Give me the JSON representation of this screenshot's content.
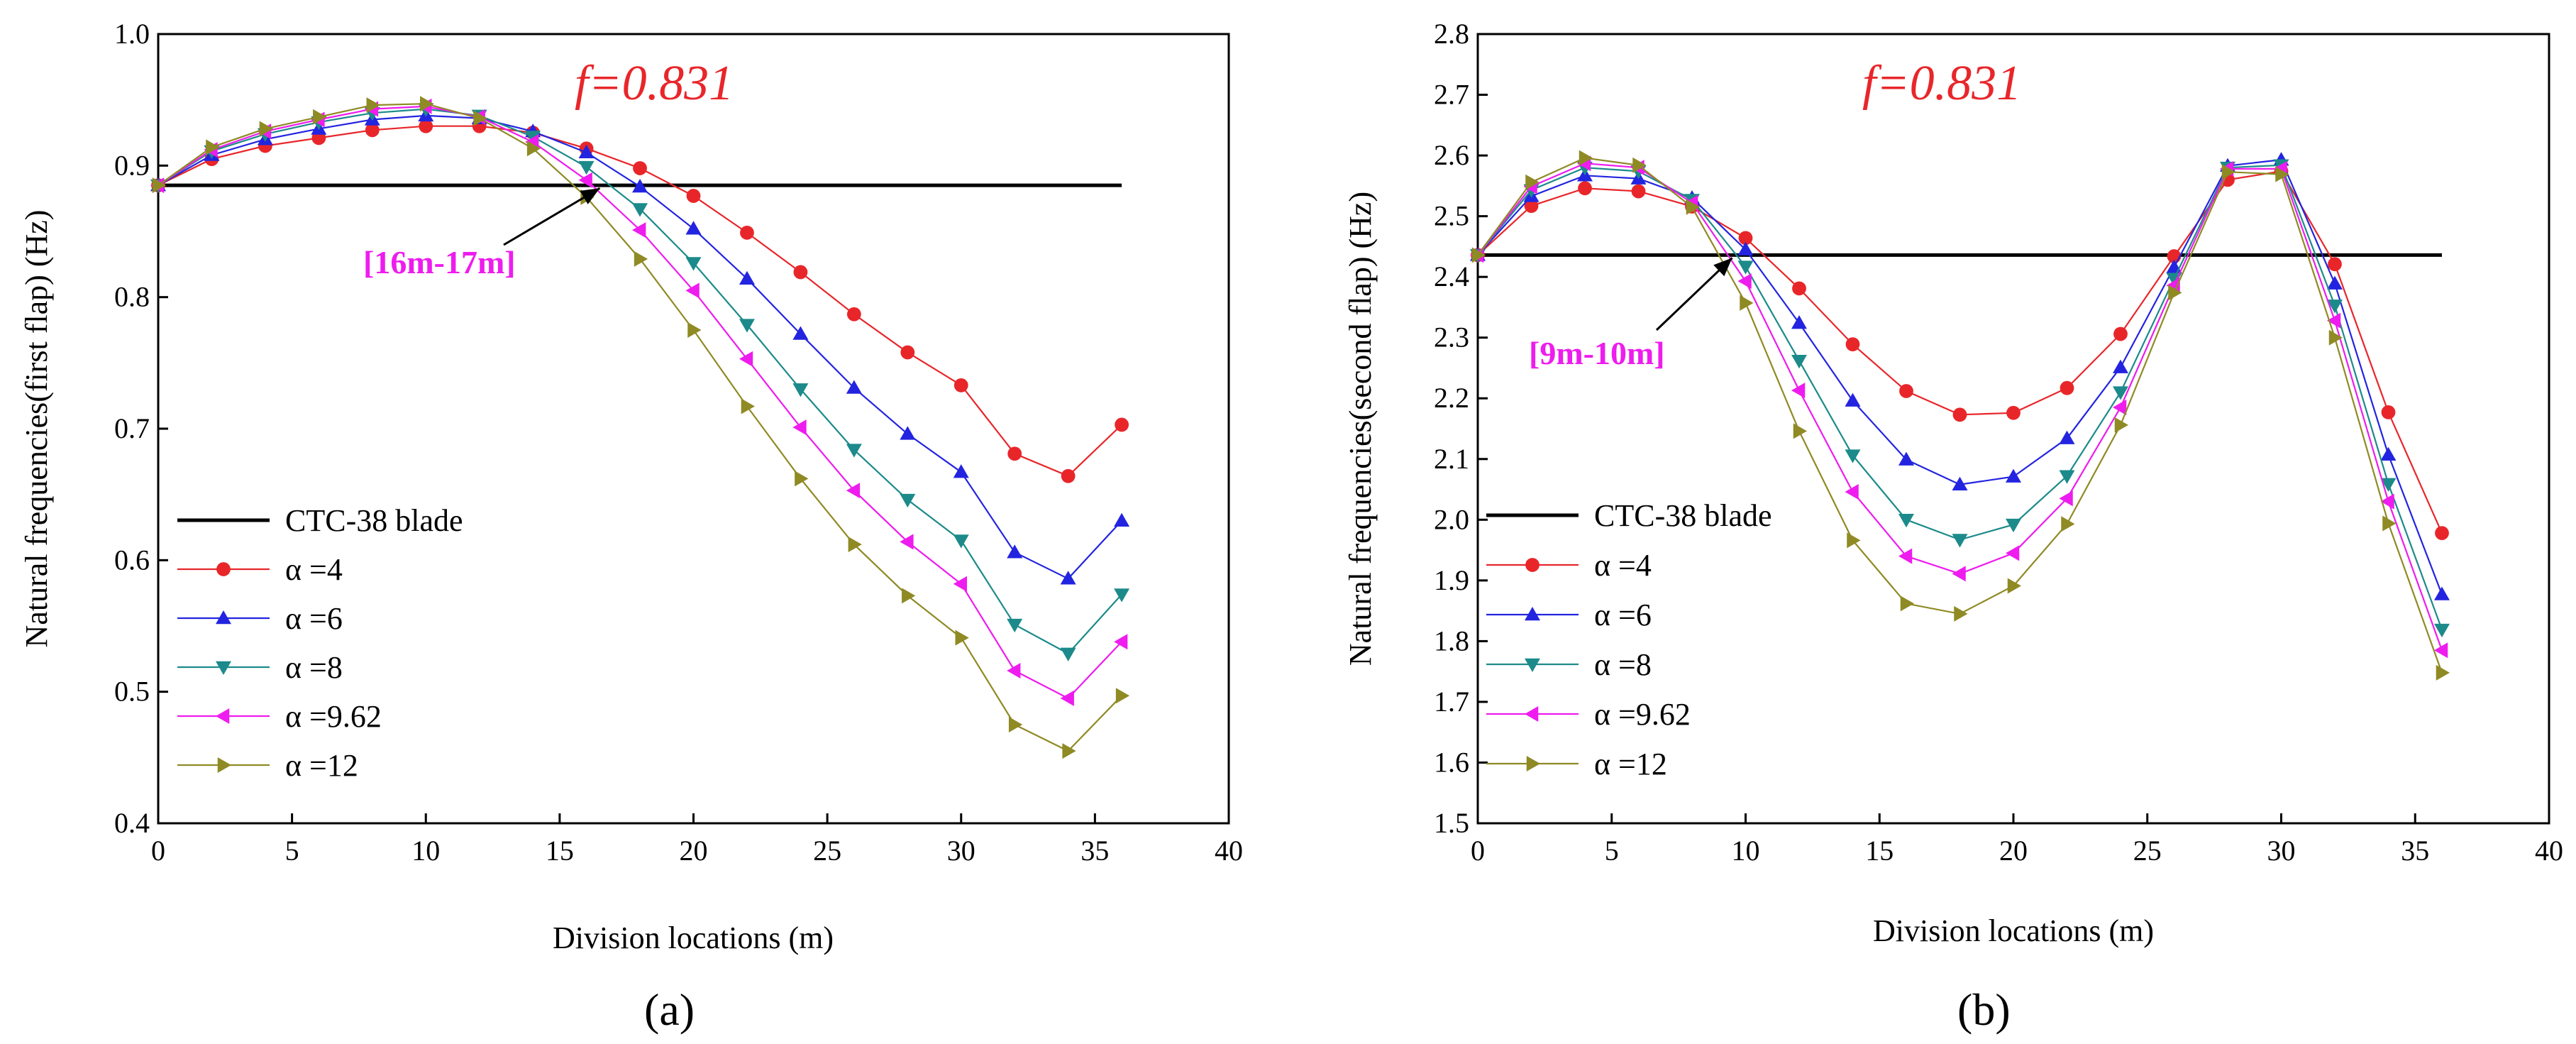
{
  "chart_data": [
    {
      "type": "line",
      "panel": "(a)",
      "xlabel": "Division locations (m)",
      "ylabel": "Natural frequencies(first flap) (Hz)",
      "xlim": [
        0,
        40
      ],
      "ylim": [
        0.4,
        1.0
      ],
      "xticks": [
        0,
        5,
        10,
        15,
        20,
        25,
        30,
        35,
        40
      ],
      "yticks": [
        0.4,
        0.5,
        0.6,
        0.7,
        0.8,
        0.9,
        1.0
      ],
      "ytick_labels": [
        "0.4",
        "0.5",
        "0.6",
        "0.7",
        "0.8",
        "0.9",
        "1.0"
      ],
      "annotation_f": "f=0.831",
      "annotation_range": "[16m-17m]",
      "arrow_target": [
        16.5,
        0.885
      ],
      "reference": {
        "name": "CTC-38 blade",
        "value": 0.885,
        "x": [
          0,
          36
        ]
      },
      "x": [
        0,
        2,
        4,
        6,
        8,
        10,
        12,
        14,
        16,
        18,
        20,
        22,
        24,
        26,
        28,
        30,
        32,
        34,
        36
      ],
      "series": [
        {
          "name": "α =4",
          "color": "#e8262a",
          "marker": "circle",
          "values": [
            0.885,
            0.905,
            0.915,
            0.921,
            0.927,
            0.93,
            0.93,
            0.925,
            0.913,
            0.898,
            0.877,
            0.849,
            0.819,
            0.787,
            0.758,
            0.733,
            0.681,
            0.664,
            0.703
          ]
        },
        {
          "name": "α =6",
          "color": "#2324e0",
          "marker": "triangle-up",
          "values": [
            0.885,
            0.908,
            0.92,
            0.928,
            0.935,
            0.938,
            0.936,
            0.926,
            0.91,
            0.884,
            0.852,
            0.814,
            0.772,
            0.731,
            0.696,
            0.667,
            0.606,
            0.586,
            0.63
          ]
        },
        {
          "name": "α =8",
          "color": "#1c8a8a",
          "marker": "triangle-down",
          "values": [
            0.885,
            0.911,
            0.924,
            0.933,
            0.94,
            0.943,
            0.938,
            0.922,
            0.899,
            0.867,
            0.826,
            0.779,
            0.73,
            0.684,
            0.646,
            0.615,
            0.551,
            0.529,
            0.574
          ]
        },
        {
          "name": "α =9.62",
          "color": "#ee1cee",
          "marker": "triangle-left",
          "values": [
            0.885,
            0.912,
            0.926,
            0.935,
            0.943,
            0.945,
            0.937,
            0.918,
            0.889,
            0.851,
            0.805,
            0.753,
            0.701,
            0.653,
            0.614,
            0.582,
            0.516,
            0.495,
            0.538
          ]
        },
        {
          "name": "α =12",
          "color": "#8f8a24",
          "marker": "triangle-right",
          "values": [
            0.885,
            0.914,
            0.928,
            0.937,
            0.946,
            0.947,
            0.936,
            0.913,
            0.876,
            0.829,
            0.775,
            0.717,
            0.662,
            0.612,
            0.573,
            0.541,
            0.475,
            0.455,
            0.497
          ]
        }
      ]
    },
    {
      "type": "line",
      "panel": "(b)",
      "xlabel": "Division locations (m)",
      "ylabel": "Natural frequencies(second flap) (Hz)",
      "xlim": [
        0,
        40
      ],
      "ylim": [
        1.5,
        2.8
      ],
      "xticks": [
        0,
        5,
        10,
        15,
        20,
        25,
        30,
        35,
        40
      ],
      "yticks": [
        1.5,
        1.6,
        1.7,
        1.8,
        1.9,
        2.0,
        2.1,
        2.2,
        2.3,
        2.4,
        2.5,
        2.6,
        2.7,
        2.8
      ],
      "ytick_labels": [
        "1.5",
        "1.6",
        "1.7",
        "1.8",
        "1.9",
        "2.0",
        "2.1",
        "2.2",
        "2.3",
        "2.4",
        "2.5",
        "2.6",
        "2.7",
        "2.8"
      ],
      "annotation_f": "f=0.831",
      "annotation_range": "[9m-10m]",
      "arrow_target": [
        9.5,
        2.436
      ],
      "reference": {
        "name": "CTC-38 blade",
        "value": 2.436,
        "x": [
          0,
          36
        ]
      },
      "x": [
        0,
        2,
        4,
        6,
        8,
        10,
        12,
        14,
        16,
        18,
        20,
        22,
        24,
        26,
        28,
        30,
        32,
        34,
        36
      ],
      "series": [
        {
          "name": "α =4",
          "color": "#e8262a",
          "marker": "circle",
          "values": [
            2.436,
            2.517,
            2.546,
            2.541,
            2.516,
            2.464,
            2.381,
            2.289,
            2.212,
            2.173,
            2.176,
            2.217,
            2.306,
            2.434,
            2.56,
            2.574,
            2.421,
            2.177,
            1.978
          ]
        },
        {
          "name": "α =6",
          "color": "#2324e0",
          "marker": "triangle-up",
          "values": [
            2.436,
            2.533,
            2.567,
            2.562,
            2.53,
            2.445,
            2.324,
            2.196,
            2.099,
            2.058,
            2.071,
            2.134,
            2.251,
            2.416,
            2.583,
            2.593,
            2.389,
            2.107,
            1.877
          ]
        },
        {
          "name": "α =8",
          "color": "#1c8a8a",
          "marker": "triangle-down",
          "values": [
            2.436,
            2.543,
            2.58,
            2.574,
            2.527,
            2.417,
            2.262,
            2.106,
            2.0,
            1.967,
            1.992,
            2.072,
            2.21,
            2.397,
            2.58,
            2.584,
            2.353,
            2.059,
            1.819
          ]
        },
        {
          "name": "α =9.62",
          "color": "#ee1cee",
          "marker": "triangle-left",
          "values": [
            2.436,
            2.549,
            2.587,
            2.58,
            2.522,
            2.393,
            2.213,
            2.046,
            1.94,
            1.911,
            1.945,
            2.035,
            2.185,
            2.386,
            2.578,
            2.578,
            2.328,
            2.03,
            1.785
          ]
        },
        {
          "name": "α =12",
          "color": "#8f8a24",
          "marker": "triangle-right",
          "values": [
            2.436,
            2.556,
            2.596,
            2.584,
            2.515,
            2.357,
            2.146,
            1.966,
            1.862,
            1.845,
            1.891,
            1.993,
            2.156,
            2.374,
            2.573,
            2.569,
            2.3,
            1.994,
            1.748
          ]
        }
      ]
    }
  ]
}
